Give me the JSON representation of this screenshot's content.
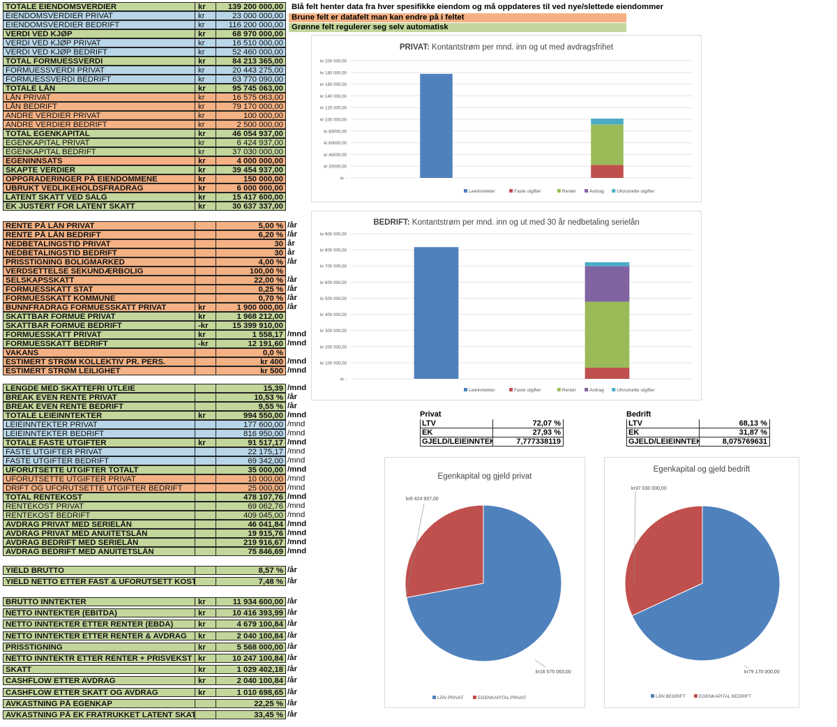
{
  "notes": {
    "blue": "Blå felt henter data fra hver spesifikke eiendom og må oppdateres til ved nye/slettede eiendommer",
    "brown": "Brune felt er datafelt man kan endre på i feltet",
    "green": "Grønne felt regulerer seg selv automatisk"
  },
  "section1": [
    {
      "label": "TOTALE EIENDOMSVERDIER",
      "cur": "kr",
      "value": "139 200 000,00",
      "color": "green"
    },
    {
      "label": "EIENDOMSVERDIER PRIVAT",
      "cur": "kr",
      "value": "23 000 000,00",
      "color": "blue",
      "regular": true
    },
    {
      "label": "EIENDOMSVERDIER BEDRIFT",
      "cur": "kr",
      "value": "116 200 000,00",
      "color": "blue",
      "regular": true
    },
    {
      "label": "VERDI VED KJØP",
      "cur": "kr",
      "value": "68 970 000,00",
      "color": "green"
    },
    {
      "label": "VERDI VED KJØP PRIVAT",
      "cur": "kr",
      "value": "16 510 000,00",
      "color": "blue",
      "regular": true
    },
    {
      "label": "VERDI VED KJØP BEDRIFT",
      "cur": "kr",
      "value": "52 460 000,00",
      "color": "blue",
      "regular": true
    },
    {
      "label": "TOTAL FORMUESSVERDI",
      "cur": "kr",
      "value": "84 213 365,00",
      "color": "green"
    },
    {
      "label": "FORMUESSVERDI PRIVAT",
      "cur": "kr",
      "value": "20 443 275,00",
      "color": "blue",
      "regular": true
    },
    {
      "label": "FORMUESSVERDI BEDRIFT",
      "cur": "kr",
      "value": "63 770 090,00",
      "color": "blue",
      "regular": true
    },
    {
      "label": "TOTALE LÅN",
      "cur": "kr",
      "value": "95 745 063,00",
      "color": "green"
    },
    {
      "label": "LÅN PRIVAT",
      "cur": "kr",
      "value": "16 575 063,00",
      "color": "orange",
      "regular": true
    },
    {
      "label": "LÅN BEDRIFT",
      "cur": "kr",
      "value": "79 170 000,00",
      "color": "orange",
      "regular": true
    },
    {
      "label": "ANDRE VERDIER PRIVAT",
      "cur": "kr",
      "value": "100 000,00",
      "color": "orange",
      "regular": true
    },
    {
      "label": "ANDRE VERDIER BEDRIFT",
      "cur": "kr",
      "value": "2 500 000,00",
      "color": "orange",
      "regular": true
    },
    {
      "label": "TOTAL EGENKAPITAL",
      "cur": "kr",
      "value": "46 054 937,00",
      "color": "green"
    },
    {
      "label": "EGENKAPITAL PRIVAT",
      "cur": "kr",
      "value": "6 424 937,00",
      "color": "green",
      "regular": true
    },
    {
      "label": "EGENKAPITAL BEDRIFT",
      "cur": "kr",
      "value": "37 030 000,00",
      "color": "green",
      "regular": true
    },
    {
      "label": "EGENINNSATS",
      "cur": "kr",
      "value": "4 000 000,00",
      "color": "orange"
    },
    {
      "label": "SKAPTE VERDIER",
      "cur": "kr",
      "value": "39 454 937,00",
      "color": "green"
    },
    {
      "label": "OPPGRADERINGER PÅ EIENDOMMENE",
      "cur": "kr",
      "value": "150 000,00",
      "color": "orange"
    },
    {
      "label": "UBRUKT VEDLIKEHOLDSFRADRAG",
      "cur": "kr",
      "value": "6 000 000,00",
      "color": "orange"
    },
    {
      "label": "LATENT SKATT VED SALG",
      "cur": "kr",
      "value": "15 417 600,00",
      "color": "green"
    },
    {
      "label": "EK JUSTERT FOR LATENT SKATT",
      "cur": "kr",
      "value": "30 637 337,00",
      "color": "green"
    }
  ],
  "section2": [
    {
      "label": "RENTE PÅ LÅN PRIVAT",
      "value": "5,00 %",
      "unit": "/år",
      "color": "orange"
    },
    {
      "label": "RENTE PÅ LÅN BEDRIFT",
      "value": "6,20 %",
      "unit": "/år",
      "color": "orange"
    },
    {
      "label": "NEDBETALINGSTID PRIVAT",
      "value": "30",
      "unit": "år",
      "color": "orange"
    },
    {
      "label": "NEDBETALINGSTID BEDRIFT",
      "value": "30",
      "unit": "år",
      "color": "orange"
    },
    {
      "label": "PRISSTIGNING BOLIGMARKED",
      "value": "4,00 %",
      "unit": "/år",
      "color": "orange"
    },
    {
      "label": "VERDSETTELSE SEKUNDÆRBOLIG",
      "value": "100,00 %",
      "unit": "",
      "color": "orange"
    },
    {
      "label": "SELSKAPSSKATT",
      "value": "22,00 %",
      "unit": "/år",
      "color": "orange"
    },
    {
      "label": "FORMUESSKATT STAT",
      "value": "0,25 %",
      "unit": "/år",
      "color": "orange"
    },
    {
      "label": "FORMUESSKATT KOMMUNE",
      "value": "0,70 %",
      "unit": "/år",
      "color": "orange"
    },
    {
      "label": "BUNNFRADRAG FORMUESSKATT PRIVAT",
      "cur": "kr",
      "value": "1 900 000,00",
      "unit": "/år",
      "color": "orange"
    },
    {
      "label": "SKATTBAR FORMUE PRIVAT",
      "cur": "kr",
      "value": "1 968 212,00",
      "unit": "",
      "color": "green"
    },
    {
      "label": "SKATTBAR FORMUE BEDRIFT",
      "cur": "-kr",
      "value": "15 399 910,00",
      "unit": "",
      "color": "green"
    },
    {
      "label": "FORMUESSKATT PRIVAT",
      "cur": "kr",
      "value": "1 558,17",
      "unit": "/mnd",
      "color": "green"
    },
    {
      "label": "FORMUESSKATT BEDRIFT",
      "cur": "-kr",
      "value": "12 191,60",
      "unit": "/mnd",
      "color": "green"
    },
    {
      "label": "VAKANS",
      "value": "0,0 %",
      "unit": "",
      "color": "orange"
    },
    {
      "label": "ESTIMERT STRØM KOLLEKTIV PR. PERS.",
      "value": "kr 400",
      "unit": "/mnd",
      "color": "orange"
    },
    {
      "label": "ESTIMERT STRØM LEILIGHET",
      "value": "kr 500",
      "unit": "/mnd",
      "color": "orange"
    }
  ],
  "section3": [
    {
      "label": "LENGDE MED SKATTEFRI UTLEIE",
      "value": "15,39",
      "unit": "/mnd",
      "color": "green"
    },
    {
      "label": "BREAK EVEN RENTE PRIVAT",
      "value": "10,53 %",
      "unit": "/år",
      "color": "green"
    },
    {
      "label": "BREAK EVEN RENTE BEDRIFT",
      "value": "9,55 %",
      "unit": "/år",
      "color": "green"
    },
    {
      "label": "TOTALE LEIEINNTEKTER",
      "cur": "kr",
      "value": "994 550,00",
      "unit": "/mnd",
      "color": "green"
    },
    {
      "label": "LEIEINNTEKTER PRIVAT",
      "value": "177 600,00",
      "unit": "/mnd",
      "color": "blue",
      "regular": true
    },
    {
      "label": "LEIEINNTEKTER BEDRIFT",
      "value": "816 950,00",
      "unit": "/mnd",
      "color": "blue",
      "regular": true
    },
    {
      "label": "TOTALE FASTE UTGIFTER",
      "cur": "kr",
      "value": "91 517,17",
      "unit": "/mnd",
      "color": "green"
    },
    {
      "label": "FASTE UTGIFTER PRIVAT",
      "value": "22 175,17",
      "unit": "/mnd",
      "color": "blue",
      "regular": true
    },
    {
      "label": "FASTE UTGIFTER BEDRIFT",
      "value": "69 342,00",
      "unit": "/mnd",
      "color": "blue",
      "regular": true
    },
    {
      "label": "UFORUTSETTE UTGIFTER TOTALT",
      "value": "35 000,00",
      "unit": "/mnd",
      "color": "green"
    },
    {
      "label": "UFORUTSETTE UTGIFTER PRIVAT",
      "value": "10 000,00",
      "unit": "/mnd",
      "color": "orange",
      "regular": true
    },
    {
      "label": "DRIFT OG UFORUTSETTE UTGIFTER BEDRIFT",
      "value": "25 000,00",
      "unit": "/mnd",
      "color": "orange",
      "regular": true
    },
    {
      "label": "TOTAL RENTEKOST",
      "value": "478 107,76",
      "unit": "/mnd",
      "color": "green"
    },
    {
      "label": "RENTEKOST PRIVAT",
      "value": "69 062,76",
      "unit": "/mnd",
      "color": "green",
      "regular": true
    },
    {
      "label": "RENTEKOST BEDRIFT",
      "value": "409 045,00",
      "unit": "/mnd",
      "color": "green",
      "regular": true
    },
    {
      "label": "AVDRAG PRIVAT MED SERIELÅN",
      "value": "46 041,84",
      "unit": "/mnd",
      "color": "green"
    },
    {
      "label": "AVDRAG PRIVAT MED ANUITETSLÅN",
      "value": "19 915,76",
      "unit": "/mnd",
      "color": "green"
    },
    {
      "label": "AVDRAG BEDRIFT MED SERIELÅN",
      "value": "219 916,67",
      "unit": "/mnd",
      "color": "green"
    },
    {
      "label": "AVDRAG BEDRIFT MED ANUITETSLÅN",
      "value": "75 846,69",
      "unit": "/mnd",
      "color": "green"
    }
  ],
  "section4": [
    {
      "label": "YIELD BRUTTO",
      "value": "8,57 %",
      "unit": "/år",
      "color": "green"
    },
    {
      "label": "YIELD NETTO ETTER FAST & UFORUTSETT KOST",
      "value": "7,48 %",
      "unit": "/år",
      "color": "green"
    }
  ],
  "section5": [
    {
      "label": "BRUTTO INNTEKTER",
      "cur": "kr",
      "value": "11 934 600,00",
      "unit": "/år",
      "color": "green"
    },
    {
      "label": "NETTO INNTEKTER (EBITDA)",
      "cur": "kr",
      "value": "10 416 393,99",
      "unit": "/år",
      "color": "green"
    },
    {
      "label": "NETTO INNTEKTER ETTER RENTER (EBDA)",
      "cur": "kr",
      "value": "4 679 100,84",
      "unit": "/år",
      "color": "green"
    },
    {
      "label": "NETTO INNTEKTER ETTER RENTER & AVDRAG",
      "cur": "kr",
      "value": "2 040 100,84",
      "unit": "/år",
      "color": "green"
    },
    {
      "label": "PRISSTIGNING",
      "cur": "kr",
      "value": "5 568 000,00",
      "unit": "/år",
      "color": "green"
    },
    {
      "label": "NETTO INNTEKTR ETTER RENTER + PRISVEKST",
      "cur": "kr",
      "value": "10 247 100,84",
      "unit": "/år",
      "color": "green"
    },
    {
      "label": "SKATT",
      "cur": "kr",
      "value": "1 029 402,18",
      "unit": "/år",
      "color": "green"
    },
    {
      "label": "CASHFLOW ETTER AVDRAG",
      "cur": "kr",
      "value": "2 040 100,84",
      "unit": "/år",
      "color": "green"
    },
    {
      "label": "CASHFLOW ETTER SKATT OG AVDRAG",
      "cur": "kr",
      "value": "1 010 698,65",
      "unit": "/år",
      "color": "green"
    },
    {
      "label": "AVKASTNING PÅ EGENKAP",
      "value": "22,25 %",
      "unit": "/år",
      "color": "green"
    },
    {
      "label": "AVKASTNING PÅ EK FRATRUKKET LATENT SKAT",
      "value": "33,45 %",
      "unit": "/år",
      "color": "green"
    }
  ],
  "ratio_tables": [
    {
      "title": "Privat",
      "rows": [
        {
          "k": "LTV",
          "v": "72,07 %"
        },
        {
          "k": "EK",
          "v": "27,93 %"
        },
        {
          "k": "GJELD/LEIEINNTEKT",
          "v": "7,777338119"
        }
      ]
    },
    {
      "title": "Bedrift",
      "rows": [
        {
          "k": "LTV",
          "v": "68,13 %"
        },
        {
          "k": "EK",
          "v": "31,87 %"
        },
        {
          "k": "GJELD/LEIEINNTEKT",
          "v": "8,075769631"
        }
      ]
    }
  ],
  "chart_data": [
    {
      "type": "bar",
      "title_bold": "PRIVAT:",
      "title": "Kontantstrøm per mnd. inn og ut med avdragsfrihet",
      "ylim": [
        0,
        200000
      ],
      "ticks": [
        "kr 200 000,00",
        "kr 180 000,00",
        "kr 160 000,00",
        "kr 140 000,00",
        "kr 120 000,00",
        "kr 100 000,00",
        "kr 80000,00",
        "kr 60000,00",
        "kr 40000,00",
        "kr 20000,00",
        "kr -"
      ],
      "legend": [
        "Leieinntekter",
        "Faste utgifter",
        "Renter",
        "Avdrag",
        "Uforutsette utgifter"
      ],
      "colors": [
        "#4f81bd",
        "#c0504d",
        "#9bbb59",
        "#8064a2",
        "#4bacc6"
      ],
      "series": [
        {
          "name": "Leieinntekter",
          "values": [
            177600,
            0
          ]
        },
        {
          "name": "Faste utgifter",
          "values": [
            0,
            22175
          ]
        },
        {
          "name": "Renter",
          "values": [
            0,
            69063
          ]
        },
        {
          "name": "Avdrag",
          "values": [
            0,
            0
          ]
        },
        {
          "name": "Uforutsette utgifter",
          "values": [
            0,
            10000
          ]
        }
      ]
    },
    {
      "type": "bar",
      "title_bold": "BEDRIFT:",
      "title": "Kontantstrøm per mnd. inn og ut med 30 år nedbetaling serielån",
      "ylim": [
        0,
        900000
      ],
      "ticks": [
        "kr 900 000,00",
        "kr 800 000,00",
        "kr 700 000,00",
        "kr 600 000,00",
        "kr 500 000,00",
        "kr 400 000,00",
        "kr 300 000,00",
        "kr 200 000,00",
        "kr 100 000,00",
        "kr -"
      ],
      "legend": [
        "Leieinntekter",
        "Faste utgifter",
        "Renter",
        "Avdrag",
        "Uforutsette utgifter"
      ],
      "colors": [
        "#4f81bd",
        "#c0504d",
        "#9bbb59",
        "#8064a2",
        "#4bacc6"
      ],
      "series": [
        {
          "name": "Leieinntekter",
          "values": [
            816950,
            0
          ]
        },
        {
          "name": "Faste utgifter",
          "values": [
            0,
            69342
          ]
        },
        {
          "name": "Renter",
          "values": [
            0,
            409045
          ]
        },
        {
          "name": "Avdrag",
          "values": [
            0,
            219917
          ]
        },
        {
          "name": "Uforutsette utgifter",
          "values": [
            0,
            25000
          ]
        }
      ]
    },
    {
      "type": "pie",
      "title": "Egenkapital og gjeld privat",
      "labels": [
        "LÅN PRIVAT",
        "EGENKAPITAL PRIVAT"
      ],
      "values": [
        16575063,
        6424937
      ],
      "value_labels": [
        "kr16 575 063,00",
        "kr6 424 937,00"
      ],
      "colors": [
        "#4f81bd",
        "#c0504d"
      ]
    },
    {
      "type": "pie",
      "title": "Egenkapital og gjeld bedrift",
      "labels": [
        "LÅN BEDRIFT",
        "EGENKAPITAL BEDRIFT"
      ],
      "values": [
        79170000,
        37030000
      ],
      "value_labels": [
        "kr79 170 000,00",
        "kr37 030 000,00"
      ],
      "colors": [
        "#4f81bd",
        "#c0504d"
      ]
    }
  ]
}
